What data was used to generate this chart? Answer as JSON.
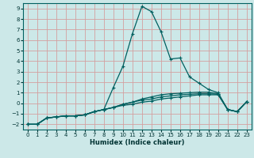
{
  "title": "",
  "xlabel": "Humidex (Indice chaleur)",
  "xlim": [
    -0.5,
    23.5
  ],
  "ylim": [
    -2.5,
    9.5
  ],
  "xticks": [
    0,
    1,
    2,
    3,
    4,
    5,
    6,
    7,
    8,
    9,
    10,
    11,
    12,
    13,
    14,
    15,
    16,
    17,
    18,
    19,
    20,
    21,
    22,
    23
  ],
  "yticks": [
    -2,
    -1,
    0,
    1,
    2,
    3,
    4,
    5,
    6,
    7,
    8,
    9
  ],
  "background_color": "#cce8e8",
  "grid_color": "#d4a0a0",
  "line_color": "#006060",
  "lines": [
    [
      0,
      -2,
      1,
      -2,
      2,
      -1.4,
      3,
      -1.3,
      4,
      -1.2,
      5,
      -1.2,
      6,
      -1.1,
      7,
      -0.8,
      8,
      -0.6,
      9,
      -0.4,
      10,
      -0.2,
      11,
      -0.1,
      12,
      0.1,
      13,
      0.2,
      14,
      0.4,
      15,
      0.5,
      16,
      0.6,
      17,
      0.7,
      18,
      0.8,
      19,
      0.8,
      20,
      0.8,
      21,
      -0.6,
      22,
      -0.8,
      23,
      0.15
    ],
    [
      0,
      -2,
      1,
      -2,
      2,
      -1.4,
      3,
      -1.3,
      4,
      -1.2,
      5,
      -1.2,
      6,
      -1.1,
      7,
      -0.8,
      8,
      -0.6,
      9,
      -0.4,
      10,
      -0.1,
      11,
      0.1,
      12,
      0.3,
      13,
      0.4,
      14,
      0.6,
      15,
      0.7,
      16,
      0.8,
      17,
      0.85,
      18,
      0.9,
      19,
      0.9,
      20,
      0.85,
      21,
      -0.6,
      22,
      -0.8,
      23,
      0.15
    ],
    [
      0,
      -2,
      1,
      -2,
      2,
      -1.4,
      3,
      -1.3,
      4,
      -1.2,
      5,
      -1.2,
      6,
      -1.1,
      7,
      -0.8,
      8,
      -0.6,
      9,
      -0.4,
      10,
      -0.1,
      11,
      0.1,
      12,
      0.4,
      13,
      0.6,
      14,
      0.8,
      15,
      0.9,
      16,
      0.95,
      17,
      1.0,
      18,
      1.05,
      19,
      1.05,
      20,
      0.9,
      21,
      -0.6,
      22,
      -0.8,
      23,
      0.15
    ],
    [
      0,
      -2,
      1,
      -2,
      2,
      -1.4,
      3,
      -1.3,
      4,
      -1.2,
      5,
      -1.2,
      6,
      -1.1,
      7,
      -0.8,
      8,
      -0.6,
      9,
      1.5,
      10,
      3.5,
      11,
      6.6,
      12,
      9.2,
      13,
      8.7,
      14,
      6.8,
      15,
      4.2,
      16,
      4.3,
      17,
      2.5,
      18,
      1.9,
      19,
      1.3,
      20,
      1.0,
      21,
      -0.6,
      22,
      -0.8,
      23,
      0.15
    ]
  ]
}
